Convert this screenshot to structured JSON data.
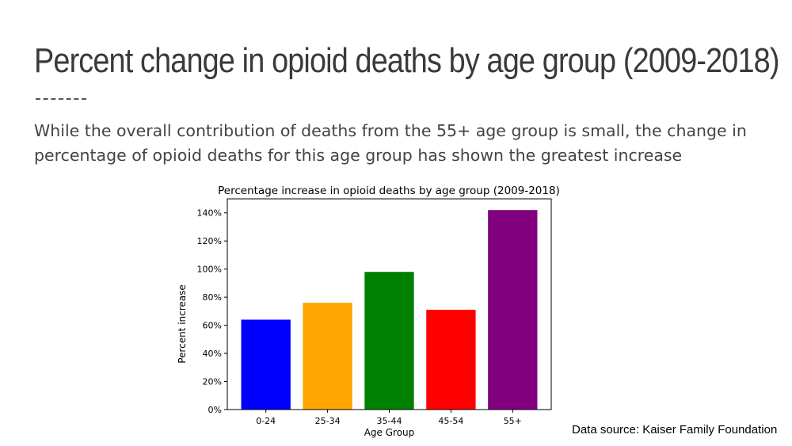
{
  "slide": {
    "title": "Percent change in opioid deaths by age group (2009-2018)",
    "subtitle": "While the overall contribution of deaths from the 55+ age group is small, the change in percentage of opioid deaths for this age group has shown the greatest increase",
    "source": "Data source: Kaiser Family Foundation"
  },
  "chart_data": {
    "type": "bar",
    "title": "Percentage increase in opioid deaths by age group (2009-2018)",
    "xlabel": "Age Group",
    "ylabel": "Percent increase",
    "categories": [
      "0-24",
      "25-34",
      "35-44",
      "45-54",
      "55+"
    ],
    "values": [
      64,
      76,
      98,
      71,
      142
    ],
    "colors": [
      "#0000ff",
      "#ffa500",
      "#008000",
      "#ff0000",
      "#800080"
    ],
    "ylim": [
      0,
      150
    ],
    "yticks": [
      0,
      20,
      40,
      60,
      80,
      100,
      120,
      140
    ],
    "ytick_labels": [
      "0%",
      "20%",
      "40%",
      "60%",
      "80%",
      "100%",
      "120%",
      "140%"
    ],
    "grid": false,
    "legend": false
  }
}
